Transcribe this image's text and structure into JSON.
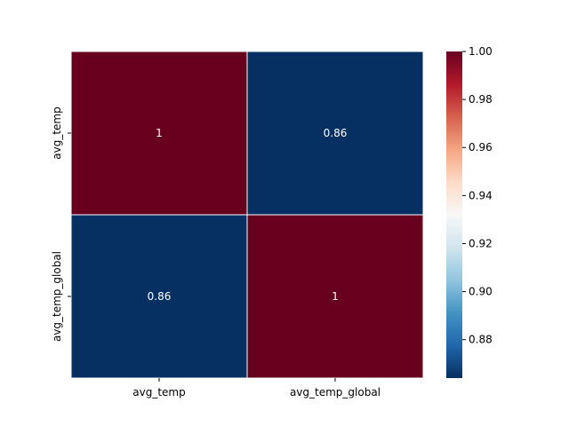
{
  "chart_data": {
    "type": "heatmap",
    "x_labels": [
      "avg_temp",
      "avg_temp_global"
    ],
    "y_labels": [
      "avg_temp",
      "avg_temp_global"
    ],
    "values": [
      [
        1,
        0.86
      ],
      [
        0.86,
        1
      ]
    ],
    "cell_labels": [
      [
        "1",
        "0.86"
      ],
      [
        "0.86",
        "1"
      ]
    ],
    "colorbar": {
      "min": 0.864,
      "max": 1.0,
      "ticks": [
        0.88,
        0.9,
        0.92,
        0.94,
        0.96,
        0.98,
        1.0
      ],
      "tick_labels": [
        "0.88",
        "0.90",
        "0.92",
        "0.94",
        "0.96",
        "0.98",
        "1.00"
      ],
      "colormap": "RdBu_r"
    },
    "colors": {
      "high": "#67001f",
      "low": "#053061",
      "cell_text": "#ffffff",
      "cell_border": "#ffffff"
    },
    "title": "",
    "xlabel": "",
    "ylabel": ""
  }
}
